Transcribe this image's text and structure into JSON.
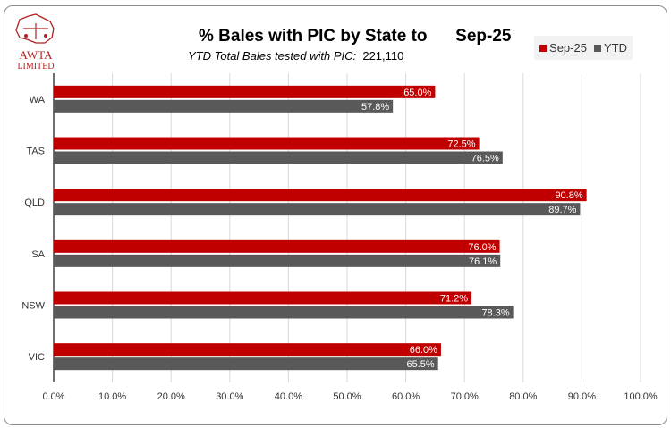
{
  "logo": {
    "line1": "AWTA",
    "line2": "LIMITED"
  },
  "chart_data": {
    "type": "bar",
    "orientation": "horizontal",
    "title": "% Bales with PIC by State to      Sep-25",
    "subtitle_label": "YTD Total Bales tested with PIC:",
    "subtitle_value": "221,110",
    "categories": [
      "WA",
      "TAS",
      "QLD",
      "SA",
      "NSW",
      "VIC"
    ],
    "series": [
      {
        "name": "Sep-25",
        "color": "#c00000",
        "values": [
          65.0,
          72.5,
          90.8,
          76.0,
          71.2,
          66.0
        ]
      },
      {
        "name": "YTD",
        "color": "#595959",
        "values": [
          57.8,
          76.5,
          89.7,
          76.1,
          78.3,
          65.5
        ]
      }
    ],
    "xlim": [
      0,
      100
    ],
    "xticks": [
      "0.0%",
      "10.0%",
      "20.0%",
      "30.0%",
      "40.0%",
      "50.0%",
      "60.0%",
      "70.0%",
      "80.0%",
      "90.0%",
      "100.0%"
    ],
    "grid": true,
    "legend": "top-right"
  }
}
